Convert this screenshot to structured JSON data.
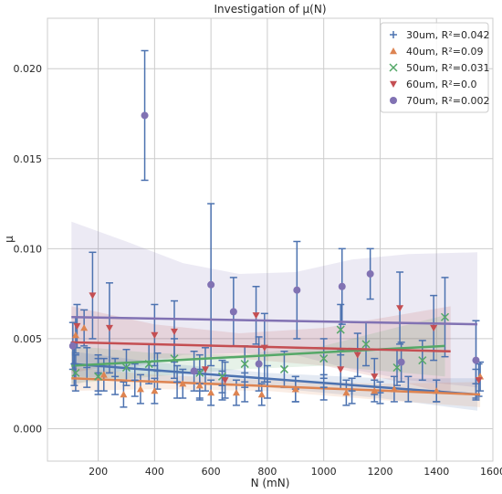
{
  "chart_data": {
    "type": "scatter",
    "title": "Investigation of μ(N)",
    "xlabel": "N (mN)",
    "ylabel": "μ",
    "xlim": [
      20,
      1600
    ],
    "ylim": [
      -0.0018,
      0.0228
    ],
    "x_ticks": [
      200,
      400,
      600,
      800,
      1000,
      1200,
      1400,
      1600
    ],
    "y_ticks": [
      0.0,
      0.005,
      0.01,
      0.015,
      0.02
    ],
    "x_tick_labels": [
      "200",
      "400",
      "600",
      "800",
      "1000",
      "1200",
      "1400",
      "1600"
    ],
    "y_tick_labels": [
      "0.000",
      "0.005",
      "0.010",
      "0.015",
      "0.020"
    ],
    "grid": true,
    "legend_position": "top-right",
    "background": "#ffffff",
    "grid_color": "#cccccc",
    "errorbar_color": "#4c72b0",
    "series": [
      {
        "name": "30um, R²=0.042",
        "marker": "plus",
        "color": "#4c72b0",
        "points": [
          {
            "x": 115,
            "y": 0.0036,
            "err": 0.0012
          },
          {
            "x": 160,
            "y": 0.0034,
            "err": 0.0011
          },
          {
            "x": 200,
            "y": 0.0031,
            "err": 0.001
          },
          {
            "x": 260,
            "y": 0.0029,
            "err": 0.001
          },
          {
            "x": 330,
            "y": 0.0027,
            "err": 0.0009
          },
          {
            "x": 410,
            "y": 0.0032,
            "err": 0.001
          },
          {
            "x": 480,
            "y": 0.0026,
            "err": 0.0009
          },
          {
            "x": 560,
            "y": 0.0025,
            "err": 0.0008
          },
          {
            "x": 640,
            "y": 0.0024,
            "err": 0.0008
          },
          {
            "x": 720,
            "y": 0.0023,
            "err": 0.0008
          },
          {
            "x": 800,
            "y": 0.0026,
            "err": 0.0009
          },
          {
            "x": 900,
            "y": 0.0022,
            "err": 0.0007
          },
          {
            "x": 1000,
            "y": 0.0023,
            "err": 0.0007
          },
          {
            "x": 1100,
            "y": 0.0021,
            "err": 0.0007
          },
          {
            "x": 1200,
            "y": 0.002,
            "err": 0.0006
          },
          {
            "x": 1300,
            "y": 0.0022,
            "err": 0.0007
          },
          {
            "x": 1400,
            "y": 0.0021,
            "err": 0.0006
          },
          {
            "x": 1540,
            "y": 0.0025,
            "err": 0.0008
          }
        ],
        "fit": {
          "x": [
            105,
            1545
          ],
          "y": [
            0.0036,
            0.0019
          ]
        },
        "band_alpha": 0.15
      },
      {
        "name": "40um, R²=0.09",
        "marker": "triangle-up",
        "color": "#dd8452",
        "points": [
          {
            "x": 120,
            "y": 0.0052,
            "err": 0.001
          },
          {
            "x": 150,
            "y": 0.0056,
            "err": 0.001
          },
          {
            "x": 220,
            "y": 0.003,
            "err": 0.0009
          },
          {
            "x": 290,
            "y": 0.0019,
            "err": 0.0007
          },
          {
            "x": 350,
            "y": 0.0022,
            "err": 0.0008
          },
          {
            "x": 400,
            "y": 0.0021,
            "err": 0.0007
          },
          {
            "x": 500,
            "y": 0.0025,
            "err": 0.0008
          },
          {
            "x": 560,
            "y": 0.0024,
            "err": 0.0008
          },
          {
            "x": 600,
            "y": 0.002,
            "err": 0.0007
          },
          {
            "x": 690,
            "y": 0.002,
            "err": 0.0007
          },
          {
            "x": 780,
            "y": 0.0019,
            "err": 0.0006
          },
          {
            "x": 900,
            "y": 0.0022,
            "err": 0.0007
          },
          {
            "x": 1080,
            "y": 0.002,
            "err": 0.0007
          },
          {
            "x": 1180,
            "y": 0.0021,
            "err": 0.0006
          },
          {
            "x": 1250,
            "y": 0.0022,
            "err": 0.0007
          },
          {
            "x": 1400,
            "y": 0.0021,
            "err": 0.0006
          },
          {
            "x": 1555,
            "y": 0.0029,
            "err": 0.0008
          }
        ],
        "fit": {
          "x": [
            105,
            1555
          ],
          "y": [
            0.0028,
            0.0019
          ]
        },
        "band_alpha": 0.15
      },
      {
        "name": "50um, R²=0.031",
        "marker": "x",
        "color": "#55a868",
        "points": [
          {
            "x": 120,
            "y": 0.0031,
            "err": 0.001
          },
          {
            "x": 200,
            "y": 0.0029,
            "err": 0.001
          },
          {
            "x": 300,
            "y": 0.0034,
            "err": 0.001
          },
          {
            "x": 380,
            "y": 0.0036,
            "err": 0.0011
          },
          {
            "x": 470,
            "y": 0.0039,
            "err": 0.0011
          },
          {
            "x": 560,
            "y": 0.0031,
            "err": 0.001
          },
          {
            "x": 640,
            "y": 0.0029,
            "err": 0.0009
          },
          {
            "x": 720,
            "y": 0.0036,
            "err": 0.001
          },
          {
            "x": 860,
            "y": 0.0033,
            "err": 0.001
          },
          {
            "x": 1000,
            "y": 0.0039,
            "err": 0.0011
          },
          {
            "x": 1060,
            "y": 0.0055,
            "err": 0.0014
          },
          {
            "x": 1150,
            "y": 0.0047,
            "err": 0.0012
          },
          {
            "x": 1260,
            "y": 0.0034,
            "err": 0.001
          },
          {
            "x": 1350,
            "y": 0.0038,
            "err": 0.0011
          },
          {
            "x": 1430,
            "y": 0.0062,
            "err": 0.0022
          }
        ],
        "fit": {
          "x": [
            105,
            1430
          ],
          "y": [
            0.0035,
            0.0046
          ]
        },
        "band_alpha": 0.15
      },
      {
        "name": "60um, R²=0.0",
        "marker": "triangle-down",
        "color": "#c44e52",
        "points": [
          {
            "x": 125,
            "y": 0.0057,
            "err": 0.0012
          },
          {
            "x": 180,
            "y": 0.0074,
            "err": 0.0024
          },
          {
            "x": 240,
            "y": 0.0056,
            "err": 0.0025
          },
          {
            "x": 400,
            "y": 0.0052,
            "err": 0.0017
          },
          {
            "x": 470,
            "y": 0.0054,
            "err": 0.0017
          },
          {
            "x": 580,
            "y": 0.0033,
            "err": 0.0012
          },
          {
            "x": 650,
            "y": 0.0027,
            "err": 0.001
          },
          {
            "x": 760,
            "y": 0.0063,
            "err": 0.0016
          },
          {
            "x": 790,
            "y": 0.0045,
            "err": 0.0019
          },
          {
            "x": 1060,
            "y": 0.0033,
            "err": 0.0011
          },
          {
            "x": 1120,
            "y": 0.0041,
            "err": 0.0012
          },
          {
            "x": 1180,
            "y": 0.0029,
            "err": 0.001
          },
          {
            "x": 1270,
            "y": 0.0067,
            "err": 0.002
          },
          {
            "x": 1390,
            "y": 0.0056,
            "err": 0.0018
          },
          {
            "x": 1550,
            "y": 0.0027,
            "err": 0.0009
          }
        ],
        "fit": {
          "x": [
            105,
            1450
          ],
          "y": [
            0.0048,
            0.0043
          ]
        },
        "band_alpha": 0.15
      },
      {
        "name": "70um, R²=0.002",
        "marker": "circle",
        "color": "#8172b3",
        "points": [
          {
            "x": 110,
            "y": 0.0046,
            "err": 0.0013
          },
          {
            "x": 365,
            "y": 0.0174,
            "err": 0.0036
          },
          {
            "x": 540,
            "y": 0.0032,
            "err": 0.0011
          },
          {
            "x": 600,
            "y": 0.008,
            "err": 0.0045
          },
          {
            "x": 680,
            "y": 0.0065,
            "err": 0.0019
          },
          {
            "x": 770,
            "y": 0.0036,
            "err": 0.0015
          },
          {
            "x": 905,
            "y": 0.0077,
            "err": 0.0027
          },
          {
            "x": 1065,
            "y": 0.0079,
            "err": 0.0021
          },
          {
            "x": 1165,
            "y": 0.0086,
            "err": 0.0014
          },
          {
            "x": 1275,
            "y": 0.0037,
            "err": 0.0011
          },
          {
            "x": 1540,
            "y": 0.0038,
            "err": 0.0022
          }
        ],
        "fit": {
          "x": [
            105,
            1545
          ],
          "y": [
            0.0062,
            0.0058
          ]
        },
        "band_alpha": 0.15
      }
    ],
    "bands": [
      {
        "color": "#8172b3",
        "x": [
          105,
          300,
          500,
          700,
          900,
          1100,
          1300,
          1545
        ],
        "upper": [
          0.0115,
          0.0104,
          0.0092,
          0.0086,
          0.0087,
          0.0094,
          0.0097,
          0.0098
        ],
        "lower": [
          0.0024,
          0.0033,
          0.0041,
          0.0042,
          0.0041,
          0.0033,
          0.0027,
          0.0023
        ]
      },
      {
        "color": "#c44e52",
        "x": [
          105,
          400,
          700,
          1000,
          1300,
          1450
        ],
        "upper": [
          0.0068,
          0.0058,
          0.0053,
          0.0056,
          0.0064,
          0.0068
        ],
        "lower": [
          0.0031,
          0.0039,
          0.0039,
          0.0035,
          0.0025,
          0.0019
        ]
      },
      {
        "color": "#55a868",
        "x": [
          105,
          400,
          700,
          1000,
          1430
        ],
        "upper": [
          0.0046,
          0.0042,
          0.0041,
          0.0046,
          0.0063
        ],
        "lower": [
          0.0025,
          0.0029,
          0.0033,
          0.0035,
          0.0029
        ]
      },
      {
        "color": "#4c72b0",
        "x": [
          105,
          400,
          800,
          1200,
          1545
        ],
        "upper": [
          0.0043,
          0.0037,
          0.0031,
          0.0028,
          0.0028
        ],
        "lower": [
          0.0029,
          0.0027,
          0.0023,
          0.0017,
          0.001
        ]
      },
      {
        "color": "#dd8452",
        "x": [
          105,
          400,
          800,
          1200,
          1555
        ],
        "upper": [
          0.0034,
          0.003,
          0.0027,
          0.0025,
          0.0026
        ],
        "lower": [
          0.0021,
          0.0022,
          0.0021,
          0.0016,
          0.0012
        ]
      }
    ]
  }
}
